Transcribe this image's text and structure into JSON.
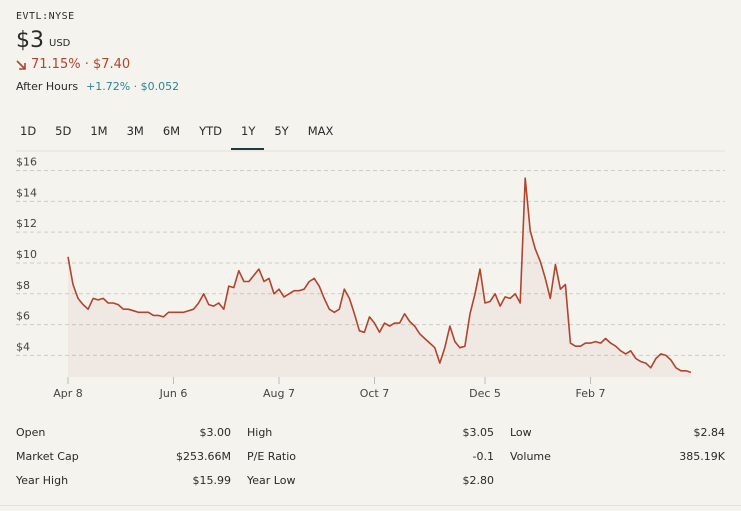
{
  "header": {
    "ticker": "EVTL:NYSE",
    "price": "$3",
    "currency": "USD",
    "change": "71.15% · $7.40",
    "after_hours_label": "After Hours",
    "after_hours_change": "+1.72% · $0.052"
  },
  "tabs": [
    "1D",
    "5D",
    "1M",
    "3M",
    "6M",
    "YTD",
    "1Y",
    "5Y",
    "MAX"
  ],
  "active_tab": "1Y",
  "chart_data": {
    "type": "line",
    "series": [
      {
        "color": "#b0452e",
        "values": [
          10.4,
          8.6,
          7.7,
          7.3,
          7.0,
          7.7,
          7.6,
          7.7,
          7.4,
          7.4,
          7.3,
          7.0,
          7.0,
          6.9,
          6.8,
          6.8,
          6.8,
          6.6,
          6.6,
          6.5,
          6.8,
          6.8,
          6.8,
          6.8,
          6.9,
          7.0,
          7.4,
          8.0,
          7.3,
          7.2,
          7.4,
          7.0,
          8.5,
          8.4,
          9.5,
          8.8,
          8.8,
          9.2,
          9.6,
          8.8,
          9.0,
          8.0,
          8.3,
          7.8,
          8.0,
          8.2,
          8.2,
          8.3,
          8.8,
          9.0,
          8.5,
          7.7,
          7.0,
          6.8,
          7.0,
          8.3,
          7.7,
          6.7,
          5.6,
          5.5,
          6.5,
          6.1,
          5.5,
          6.1,
          5.9,
          6.1,
          6.1,
          6.7,
          6.2,
          5.9,
          5.4,
          5.1,
          4.8,
          4.5,
          3.5,
          4.5,
          5.9,
          4.9,
          4.5,
          4.6,
          6.7,
          8.0,
          9.6,
          7.4,
          7.5,
          8.0,
          7.2,
          7.8,
          7.7,
          8.0,
          7.4,
          15.5,
          12.1,
          10.9,
          10.1,
          9.0,
          7.7,
          9.9,
          8.3,
          8.6,
          4.8,
          4.6,
          4.6,
          4.8,
          4.8,
          4.9,
          4.8,
          5.1,
          4.8,
          4.6,
          4.3,
          4.1,
          4.3,
          3.8,
          3.6,
          3.5,
          3.2,
          3.8,
          4.1,
          4.0,
          3.7,
          3.2,
          3.0,
          3.0,
          2.9
        ]
      }
    ],
    "xlim": [
      0,
      123
    ],
    "xticks": [
      {
        "value": 0,
        "label": "Apr 8"
      },
      {
        "value": 21,
        "label": "Jun 6"
      },
      {
        "value": 42,
        "label": "Aug 7"
      },
      {
        "value": 61,
        "label": "Oct 7"
      },
      {
        "value": 83,
        "label": "Dec 5"
      },
      {
        "value": 104,
        "label": "Feb 7"
      }
    ],
    "ylim": [
      2.6,
      17.2
    ],
    "yticks": [
      {
        "value": 4,
        "label": "$4"
      },
      {
        "value": 6,
        "label": "$6"
      },
      {
        "value": 8,
        "label": "$8"
      },
      {
        "value": 10,
        "label": "$10"
      },
      {
        "value": 12,
        "label": "$12"
      },
      {
        "value": 14,
        "label": "$14"
      },
      {
        "value": 16,
        "label": "$16"
      }
    ],
    "grid": true
  },
  "stats": [
    {
      "label": "Open",
      "value": "$3.00"
    },
    {
      "label": "High",
      "value": "$3.05"
    },
    {
      "label": "Low",
      "value": "$2.84"
    },
    {
      "label": "Market Cap",
      "value": "$253.66M"
    },
    {
      "label": "P/E Ratio",
      "value": "-0.1"
    },
    {
      "label": "Volume",
      "value": "385.19K"
    },
    {
      "label": "Year High",
      "value": "$15.99"
    },
    {
      "label": "Year Low",
      "value": "$2.80"
    }
  ]
}
